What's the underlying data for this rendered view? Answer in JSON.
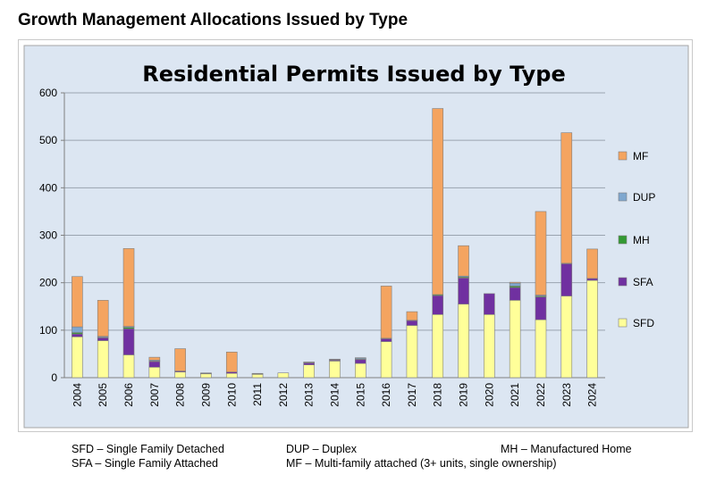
{
  "page": {
    "heading": "Growth Management Allocations Issued by Type"
  },
  "chart_data": {
    "type": "bar",
    "stacked": true,
    "title": "Residential Permits Issued by Type",
    "xlabel": "",
    "ylabel": "",
    "ylim": [
      0,
      600
    ],
    "yticks": [
      0,
      100,
      200,
      300,
      400,
      500,
      600
    ],
    "grid": true,
    "legend_position": "right",
    "categories": [
      "2004",
      "2005",
      "2006",
      "2007",
      "2008",
      "2009",
      "2010",
      "2011",
      "2012",
      "2013",
      "2014",
      "2015",
      "2016",
      "2017",
      "2018",
      "2019",
      "2020",
      "2021",
      "2022",
      "2023",
      "2024"
    ],
    "series": [
      {
        "name": "SFD",
        "color": "#ffff99",
        "values": [
          86,
          78,
          48,
          22,
          12,
          8,
          9,
          7,
          10,
          27,
          35,
          30,
          76,
          110,
          133,
          155,
          133,
          163,
          122,
          172,
          205
        ]
      },
      {
        "name": "SFA",
        "color": "#7030a0",
        "values": [
          6,
          6,
          55,
          12,
          2,
          0,
          3,
          0,
          0,
          4,
          2,
          8,
          6,
          10,
          40,
          55,
          44,
          27,
          48,
          68,
          4
        ]
      },
      {
        "name": "MH",
        "color": "#339933",
        "values": [
          3,
          1,
          3,
          1,
          0,
          1,
          0,
          1,
          0,
          1,
          1,
          1,
          1,
          1,
          2,
          2,
          0,
          3,
          2,
          1,
          0
        ]
      },
      {
        "name": "DUP",
        "color": "#7fa7cf",
        "values": [
          12,
          2,
          2,
          2,
          0,
          0,
          0,
          0,
          0,
          0,
          0,
          2,
          0,
          0,
          0,
          2,
          0,
          6,
          2,
          0,
          0
        ]
      },
      {
        "name": "MF",
        "color": "#f4a460",
        "values": [
          106,
          76,
          164,
          6,
          47,
          1,
          42,
          1,
          0,
          1,
          1,
          1,
          110,
          18,
          392,
          64,
          0,
          2,
          176,
          275,
          62
        ]
      }
    ],
    "legend_order": [
      "MF",
      "DUP",
      "MH",
      "SFA",
      "SFD"
    ]
  },
  "notes": {
    "sfd": "SFD – Single Family Detached",
    "sfa": "SFA – Single Family Attached",
    "dup": "DUP – Duplex",
    "mf": "MF – Multi-family attached (3+ units, single ownership)",
    "mh": "MH – Manufactured Home"
  }
}
